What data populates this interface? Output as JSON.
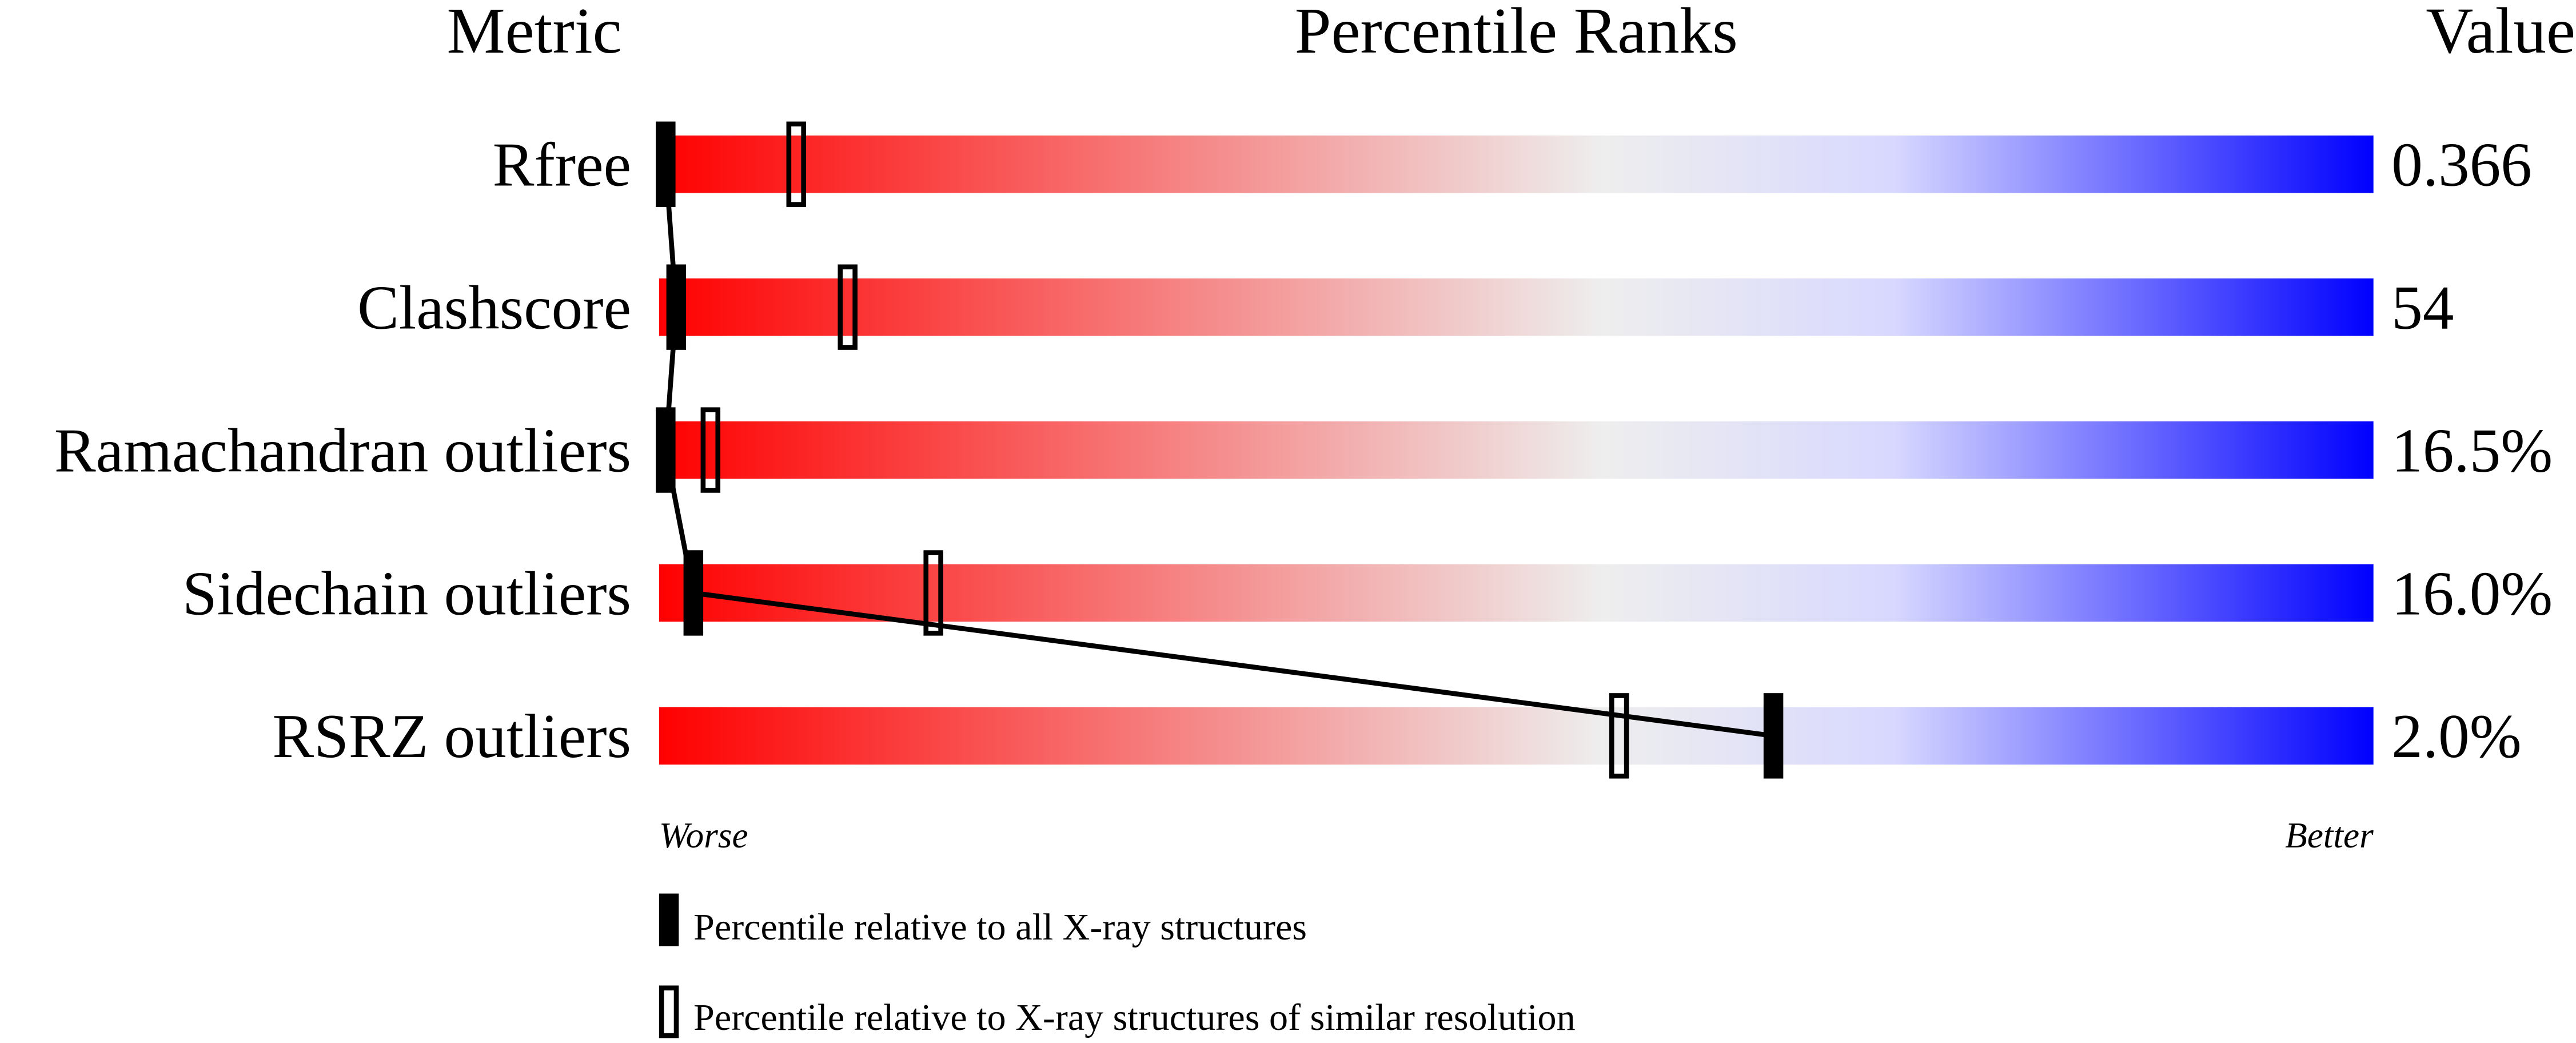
{
  "chart_data": {
    "type": "bar",
    "headers": {
      "metric": "Metric",
      "ranks": "Percentile Ranks",
      "value": "Value"
    },
    "xlim": [
      0,
      100
    ],
    "axis_labels": {
      "worse": "Worse",
      "better": "Better"
    },
    "gradient_colors": [
      "#ff0000",
      "#eeeeee",
      "#d8d8ff",
      "#0000ff"
    ],
    "metrics": [
      {
        "name": "Rfree",
        "value": "0.366",
        "percentile_all": 0,
        "percentile_similar": 8
      },
      {
        "name": "Clashscore",
        "value": "54",
        "percentile_all": 1,
        "percentile_similar": 11
      },
      {
        "name": "Ramachandran outliers",
        "value": "16.5%",
        "percentile_all": 0,
        "percentile_similar": 3
      },
      {
        "name": "Sidechain outliers",
        "value": "16.0%",
        "percentile_all": 2,
        "percentile_similar": 16
      },
      {
        "name": "RSRZ outliers",
        "value": "2.0%",
        "percentile_all": 65,
        "percentile_similar": 56
      }
    ],
    "legend": {
      "all": "Percentile relative to all X-ray structures",
      "similar": "Percentile relative to X-ray structures of similar resolution"
    }
  }
}
